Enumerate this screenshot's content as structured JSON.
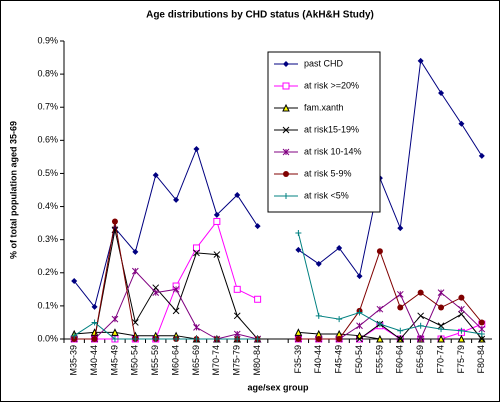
{
  "chart_data": {
    "type": "line",
    "title": "Age distributions by CHD status (AkH&H Study)",
    "x_label": "age/sex group",
    "y_label": "% of total population aged 35-69",
    "categories": [
      "M35-39",
      "M40-44",
      "M45-49",
      "M50-54",
      "M55-59",
      "M60-64",
      "M65-69",
      "M70-74",
      "M75-79",
      "M80-84",
      null,
      "F35-39",
      "F40-44",
      "F45-49",
      "F50-54",
      "F55-59",
      "F60-64",
      "F65-69",
      "F70-74",
      "F75-79",
      "F80-84"
    ],
    "ylim": [
      0,
      0.9
    ],
    "yticks": [
      {
        "value": 0,
        "label": "0.0%"
      },
      {
        "value": 0.1,
        "label": "0.1%"
      },
      {
        "value": 0.2,
        "label": "0.2%"
      },
      {
        "value": 0.3,
        "label": "0.3%"
      },
      {
        "value": 0.4,
        "label": "0.4%"
      },
      {
        "value": 0.5,
        "label": "0.5%"
      },
      {
        "value": 0.6,
        "label": "0.6%"
      },
      {
        "value": 0.7,
        "label": "0.7%"
      },
      {
        "value": 0.8,
        "label": "0.8%"
      },
      {
        "value": 0.9,
        "label": "0.9%"
      }
    ],
    "grid": false,
    "legend": "top-right",
    "series": [
      {
        "name": "past CHD",
        "color": "#000080",
        "marker": "diamond",
        "values": [
          0.175,
          0.097,
          0.335,
          0.263,
          0.495,
          0.42,
          0.574,
          0.375,
          0.435,
          0.341,
          null,
          0.269,
          0.227,
          0.275,
          0.19,
          0.486,
          0.335,
          0.84,
          0.743,
          0.65,
          0.553
        ]
      },
      {
        "name": "at risk >=20%",
        "color": "#ff00ff",
        "marker": "square-open",
        "values": [
          0,
          0,
          0,
          0,
          0,
          0.16,
          0.275,
          0.355,
          0.15,
          0.12,
          null,
          0,
          0,
          0,
          0,
          0.04,
          0,
          0,
          0,
          0.02,
          0.045
        ]
      },
      {
        "name": "fam.xanth",
        "color": "#000000",
        "marker": "triangle",
        "values": [
          0.015,
          0.02,
          0.02,
          0.01,
          0.01,
          0.01,
          0,
          0,
          0,
          0,
          null,
          0.02,
          0.015,
          0.015,
          0.01,
          0,
          0,
          0,
          0,
          0,
          0
        ]
      },
      {
        "name": "at risk15-19%",
        "color": "#000000",
        "marker": "x",
        "values": [
          0,
          0,
          0.33,
          0.05,
          0.155,
          0.085,
          0.26,
          0.255,
          0.07,
          0,
          null,
          0,
          0,
          0,
          0,
          0.045,
          0,
          0.07,
          0.04,
          0.075,
          0
        ]
      },
      {
        "name": "at risk 10-14%",
        "color": "#800080",
        "marker": "star",
        "values": [
          0,
          0,
          0.06,
          0.205,
          0.14,
          0.15,
          0.035,
          0,
          0.015,
          0,
          null,
          0,
          0,
          0,
          0.04,
          0.09,
          0.135,
          0,
          0.14,
          0.09,
          0.03
        ]
      },
      {
        "name": "at risk 5-9%",
        "color": "#800000",
        "marker": "circle",
        "values": [
          0,
          0,
          0.355,
          0,
          0,
          0,
          0,
          0,
          0,
          0,
          null,
          0,
          0,
          0,
          0.085,
          0.265,
          0.095,
          0.14,
          0.095,
          0.125,
          0.05
        ]
      },
      {
        "name": "at risk <5%",
        "color": "#008080",
        "marker": "plus",
        "values": [
          0.01,
          0.05,
          0,
          0,
          0,
          0,
          0,
          0,
          0,
          0,
          null,
          0.32,
          0.07,
          0.06,
          0.08,
          0.045,
          0.025,
          0.04,
          0.03,
          0.025,
          0.015
        ]
      }
    ]
  }
}
